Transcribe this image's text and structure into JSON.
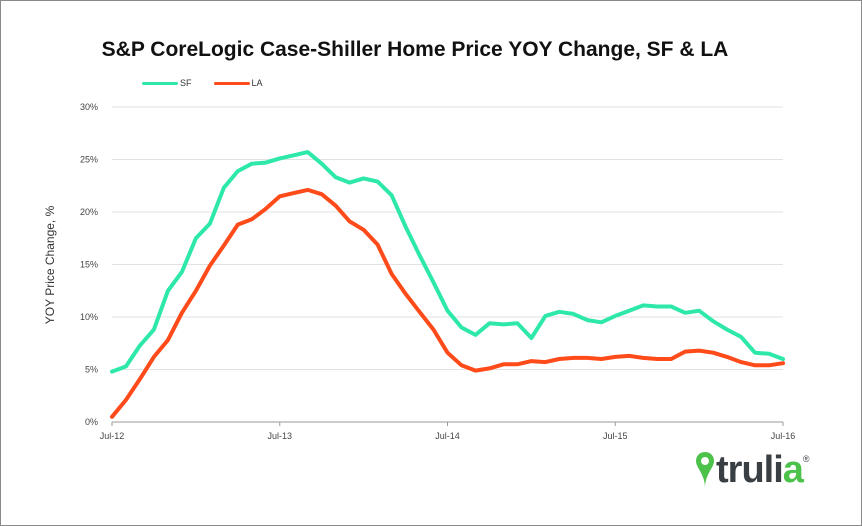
{
  "chart_data": {
    "type": "line",
    "title": "S&P CoreLogic Case-Shiller Home Price YOY Change, SF & LA",
    "ylabel": "YOY Price Change, %",
    "xlabel": "",
    "ylim": [
      0,
      30
    ],
    "yticks": [
      "0%",
      "5%",
      "10%",
      "15%",
      "20%",
      "25%",
      "30%"
    ],
    "ytick_values": [
      0,
      5,
      10,
      15,
      20,
      25,
      30
    ],
    "xticks": [
      "Jul-12",
      "Jul-13",
      "Jul-14",
      "Jul-15",
      "Jul-16"
    ],
    "grid": true,
    "legend_position": "top-left",
    "x": [
      "Jul-12",
      "Aug-12",
      "Sep-12",
      "Oct-12",
      "Nov-12",
      "Dec-12",
      "Jan-13",
      "Feb-13",
      "Mar-13",
      "Apr-13",
      "May-13",
      "Jun-13",
      "Jul-13",
      "Aug-13",
      "Sep-13",
      "Oct-13",
      "Nov-13",
      "Dec-13",
      "Jan-14",
      "Feb-14",
      "Mar-14",
      "Apr-14",
      "May-14",
      "Jun-14",
      "Jul-14",
      "Aug-14",
      "Sep-14",
      "Oct-14",
      "Nov-14",
      "Dec-14",
      "Jan-15",
      "Feb-15",
      "Mar-15",
      "Apr-15",
      "May-15",
      "Jun-15",
      "Jul-15",
      "Aug-15",
      "Sep-15",
      "Oct-15",
      "Nov-15",
      "Dec-15",
      "Jan-16",
      "Feb-16",
      "Mar-16",
      "Apr-16",
      "May-16",
      "Jun-16",
      "Jul-16"
    ],
    "series": [
      {
        "name": "SF",
        "color": "#2ee8a8",
        "values": [
          4.8,
          5.3,
          7.3,
          8.8,
          12.5,
          14.3,
          17.5,
          18.9,
          22.3,
          23.9,
          24.6,
          24.7,
          25.1,
          25.4,
          25.7,
          24.6,
          23.3,
          22.8,
          23.2,
          22.9,
          21.6,
          18.6,
          15.9,
          13.3,
          10.6,
          9.0,
          8.3,
          9.4,
          9.3,
          9.4,
          8.0,
          10.1,
          10.5,
          10.3,
          9.7,
          9.5,
          10.1,
          10.6,
          11.1,
          11.0,
          11.0,
          10.4,
          10.6,
          9.6,
          8.8,
          8.1,
          6.6,
          6.5,
          6.0
        ]
      },
      {
        "name": "LA",
        "color": "#ff4a1a",
        "values": [
          0.5,
          2.1,
          4.1,
          6.2,
          7.8,
          10.4,
          12.5,
          14.9,
          16.8,
          18.8,
          19.3,
          20.3,
          21.5,
          21.8,
          22.1,
          21.7,
          20.6,
          19.1,
          18.3,
          16.9,
          14.1,
          12.2,
          10.5,
          8.8,
          6.6,
          5.4,
          4.9,
          5.1,
          5.5,
          5.5,
          5.8,
          5.7,
          6.0,
          6.1,
          6.1,
          6.0,
          6.2,
          6.3,
          6.1,
          6.0,
          6.0,
          6.7,
          6.8,
          6.6,
          6.2,
          5.7,
          5.4,
          5.4,
          5.6
        ]
      }
    ]
  },
  "logo": {
    "name": "truli",
    "accent_letter": "a",
    "registered": "®",
    "pin": "map-pin-icon",
    "pin_color": "#4cc24a"
  }
}
